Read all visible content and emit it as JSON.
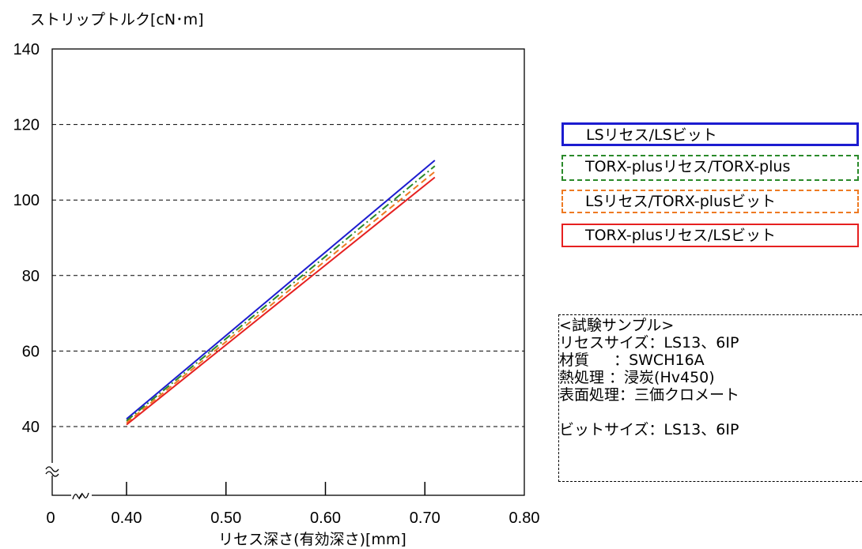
{
  "chart_data": {
    "type": "line",
    "ylabel": "ストリップトルク[cN･m]",
    "xlabel": "リセス深さ(有効深さ)[mm]",
    "xlim": [
      0.3,
      0.8
    ],
    "ylim": [
      20,
      140
    ],
    "x_ticks": [
      "0",
      "0.40",
      "0.50",
      "0.60",
      "0.70",
      "0.80"
    ],
    "y_ticks": [
      "40",
      "60",
      "80",
      "100",
      "120",
      "140"
    ],
    "grid": "horizontal dashed",
    "axis_break": true,
    "series": [
      {
        "name": "LSリセス/LSビット",
        "color": "#1c1cd0",
        "style": "solid",
        "x": [
          0.4,
          0.71
        ],
        "y": [
          42,
          110.5
        ]
      },
      {
        "name": "TORX-plusリセス/TORX-plus",
        "color": "#2a8a2a",
        "style": "dashdot",
        "x": [
          0.4,
          0.71
        ],
        "y": [
          41.5,
          109
        ]
      },
      {
        "name": "LSリセス/TORX-plusビット",
        "color": "#ee7a22",
        "style": "dashed",
        "x": [
          0.4,
          0.71
        ],
        "y": [
          41,
          107.5
        ]
      },
      {
        "name": "TORX-plusリセス/LSビット",
        "color": "#e62020",
        "style": "solid",
        "x": [
          0.4,
          0.71
        ],
        "y": [
          40.5,
          106
        ]
      }
    ]
  },
  "legend": {
    "items": [
      "LSリセス/LSビット",
      "TORX-plusリセス/TORX-plus",
      "LSリセス/TORX-plusビット",
      "TORX-plusリセス/LSビット"
    ]
  },
  "sample_info": {
    "title": "<試験サンプル>",
    "recess_size": "リセスサイズ：LS13、6IP",
    "material": "材質 　 ：SWCH16A",
    "heat_treatment": "熱処理 ：浸炭(Hv450)",
    "surface": "表面処理：三価クロメート",
    "bit_size": "ビットサイズ：LS13、6IP"
  }
}
